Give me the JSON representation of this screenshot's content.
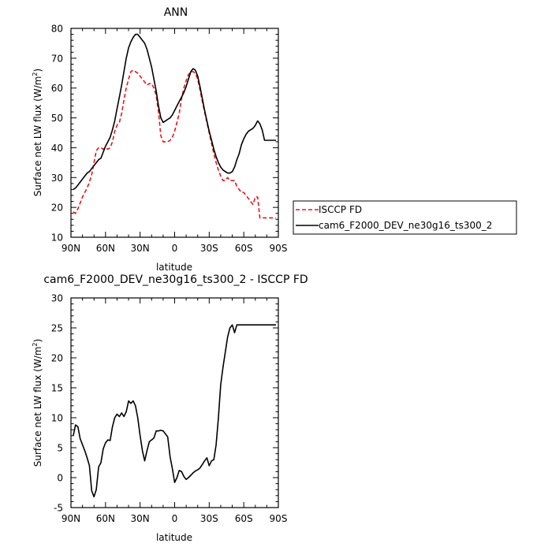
{
  "chart_data": [
    {
      "type": "line",
      "title": "ANN",
      "xlabel": "latitude",
      "ylabel": "Surface net LW flux (W/m",
      "ylabel_sup": "2",
      "ylabel_close": ")",
      "xlim": [
        90,
        -90
      ],
      "ylim": [
        10,
        80
      ],
      "xticks": [
        90,
        60,
        30,
        0,
        -30,
        -60,
        -90
      ],
      "xtick_labels": [
        "90N",
        "60N",
        "30N",
        "0",
        "30S",
        "60S",
        "90S"
      ],
      "yticks": [
        10,
        20,
        30,
        40,
        50,
        60,
        70,
        80
      ],
      "ytick_labels": [
        "10",
        "20",
        "30",
        "40",
        "50",
        "60",
        "70",
        "80"
      ],
      "legend_position": "right",
      "series": [
        {
          "name": "ISCCP FD",
          "color": "#e8141b",
          "dash": "dashed",
          "x": [
            88,
            86,
            84,
            82,
            80,
            78,
            76,
            74,
            72,
            70,
            68,
            66,
            64,
            62,
            60,
            58,
            56,
            54,
            52,
            50,
            48,
            46,
            44,
            42,
            40,
            38,
            36,
            34,
            32,
            30,
            28,
            26,
            24,
            22,
            20,
            18,
            16,
            14,
            12,
            10,
            8,
            6,
            4,
            2,
            0,
            -2,
            -4,
            -6,
            -8,
            -10,
            -12,
            -14,
            -16,
            -18,
            -20,
            -22,
            -24,
            -26,
            -28,
            -30,
            -32,
            -34,
            -36,
            -38,
            -40,
            -42,
            -44,
            -46,
            -48,
            -50,
            -52,
            -54,
            -56,
            -58,
            -60,
            -62,
            -64,
            -66,
            -68,
            -70,
            -72,
            -74,
            -76,
            -78,
            -80,
            -82,
            -84,
            -86,
            -88
          ],
          "values": [
            18.5,
            18.0,
            19.5,
            21.5,
            23.5,
            25.0,
            26.5,
            28.5,
            31.0,
            35.0,
            39.0,
            40.0,
            40.0,
            39.5,
            40.0,
            39.5,
            40.0,
            42.0,
            45.5,
            47.5,
            48.5,
            51.5,
            56.0,
            60.0,
            63.0,
            65.5,
            66.0,
            65.5,
            65.0,
            64.0,
            63.0,
            62.0,
            61.0,
            61.5,
            61.5,
            60.0,
            57.5,
            52.0,
            44.0,
            42.0,
            42.0,
            42.0,
            42.5,
            43.5,
            45.5,
            48.5,
            51.5,
            56.5,
            60.0,
            62.5,
            64.5,
            65.5,
            65.5,
            65.0,
            63.0,
            59.5,
            55.5,
            52.0,
            48.5,
            45.0,
            41.5,
            38.0,
            35.0,
            32.5,
            30.5,
            29.0,
            29.0,
            30.0,
            29.0,
            29.0,
            29.0,
            27.0,
            26.0,
            25.0,
            25.0,
            24.0,
            23.0,
            22.0,
            21.0,
            23.5,
            23.5,
            16.5,
            16.5,
            16.5,
            16.5,
            16.5,
            16.5,
            16.5,
            16.5
          ]
        },
        {
          "name": "cam6_F2000_DEV_ne30g16_ts300_2",
          "color": "#000000",
          "dash": "solid",
          "x": [
            88,
            86,
            84,
            82,
            80,
            78,
            76,
            74,
            72,
            70,
            68,
            66,
            64,
            62,
            60,
            58,
            56,
            54,
            52,
            50,
            48,
            46,
            44,
            42,
            40,
            38,
            36,
            34,
            32,
            30,
            28,
            26,
            24,
            22,
            20,
            18,
            16,
            14,
            12,
            10,
            8,
            6,
            4,
            2,
            0,
            -2,
            -4,
            -6,
            -8,
            -10,
            -12,
            -14,
            -16,
            -18,
            -20,
            -22,
            -24,
            -26,
            -28,
            -30,
            -32,
            -34,
            -36,
            -38,
            -40,
            -42,
            -44,
            -46,
            -48,
            -50,
            -52,
            -54,
            -56,
            -58,
            -60,
            -62,
            -64,
            -66,
            -68,
            -70,
            -72,
            -74,
            -76,
            -78,
            -80,
            -82,
            -84,
            -86,
            -88
          ],
          "values": [
            26.0,
            26.5,
            27.5,
            28.5,
            29.5,
            30.5,
            31.5,
            32.0,
            33.0,
            34.0,
            35.0,
            36.0,
            36.5,
            38.5,
            40.5,
            42.0,
            43.5,
            46.0,
            49.0,
            53.0,
            57.0,
            61.0,
            65.5,
            70.0,
            73.5,
            75.5,
            77.0,
            78.0,
            78.0,
            77.0,
            76.0,
            75.0,
            73.0,
            70.0,
            67.0,
            63.0,
            59.0,
            54.0,
            50.0,
            48.5,
            49.0,
            49.5,
            50.0,
            51.0,
            52.5,
            54.0,
            55.5,
            57.0,
            58.5,
            60.5,
            63.0,
            65.5,
            66.5,
            66.0,
            64.0,
            60.5,
            56.5,
            52.5,
            49.0,
            45.5,
            42.5,
            39.5,
            37.0,
            35.0,
            33.5,
            32.5,
            32.0,
            31.5,
            31.5,
            32.0,
            33.5,
            36.0,
            38.0,
            41.0,
            43.0,
            44.5,
            45.5,
            46.0,
            46.5,
            47.5,
            49.0,
            48.0,
            46.0,
            42.5,
            42.5,
            42.5,
            42.5,
            42.5,
            42.5
          ]
        }
      ]
    },
    {
      "type": "line",
      "title": "cam6_F2000_DEV_ne30g16_ts300_2 - ISCCP FD",
      "xlabel": "latitude",
      "ylabel": "Surface net LW flux (W/m",
      "ylabel_sup": "2",
      "ylabel_close": ")",
      "xlim": [
        90,
        -90
      ],
      "ylim": [
        -5,
        30
      ],
      "xticks": [
        90,
        60,
        30,
        0,
        -30,
        -60,
        -90
      ],
      "xtick_labels": [
        "90N",
        "60N",
        "30N",
        "0",
        "30S",
        "60S",
        "90S"
      ],
      "yticks": [
        -5,
        0,
        5,
        10,
        15,
        20,
        25,
        30
      ],
      "ytick_labels": [
        "-5",
        "0",
        "5",
        "10",
        "15",
        "20",
        "25",
        "30"
      ],
      "series": [
        {
          "color": "#000000",
          "dash": "solid",
          "x": [
            88,
            86,
            84,
            82,
            80,
            78,
            76,
            74,
            72,
            70,
            68,
            66,
            64,
            62,
            60,
            58,
            56,
            54,
            52,
            50,
            48,
            46,
            44,
            42,
            40,
            38,
            36,
            34,
            32,
            30,
            28,
            26,
            24,
            22,
            20,
            18,
            16,
            14,
            12,
            10,
            8,
            6,
            4,
            2,
            0,
            -2,
            -4,
            -6,
            -8,
            -10,
            -12,
            -14,
            -16,
            -18,
            -20,
            -22,
            -24,
            -26,
            -28,
            -30,
            -32,
            -34,
            -36,
            -38,
            -40,
            -42,
            -44,
            -46,
            -48,
            -50,
            -52,
            -54,
            -56,
            -58,
            -60,
            -62,
            -64,
            -66,
            -68,
            -70,
            -72,
            -74,
            -76,
            -78,
            -80,
            -82,
            -84,
            -86,
            -88
          ],
          "values": [
            7.0,
            8.8,
            8.5,
            6.5,
            5.5,
            4.5,
            3.3,
            2.0,
            -2.2,
            -3.2,
            -2.0,
            1.8,
            2.5,
            4.8,
            5.8,
            6.3,
            6.2,
            8.5,
            10.0,
            10.6,
            10.2,
            10.8,
            10.2,
            11.0,
            12.8,
            12.4,
            12.8,
            12.0,
            10.0,
            7.0,
            4.5,
            2.8,
            4.5,
            6.0,
            6.3,
            6.6,
            7.8,
            7.8,
            7.9,
            7.8,
            7.3,
            6.8,
            3.5,
            1.5,
            -0.8,
            0.0,
            1.2,
            1.0,
            0.2,
            -0.3,
            0.0,
            0.4,
            0.8,
            1.1,
            1.3,
            1.6,
            2.2,
            2.8,
            3.3,
            2.0,
            2.8,
            3.0,
            5.5,
            10.0,
            15.5,
            18.5,
            21.0,
            23.5,
            25.0,
            25.5,
            24.2,
            25.5,
            25.5,
            25.5,
            25.5,
            25.5,
            25.5,
            25.5,
            25.5,
            25.5,
            25.5,
            25.5,
            25.5,
            25.5,
            25.5,
            25.5,
            25.5,
            25.5,
            25.5
          ]
        }
      ]
    }
  ]
}
